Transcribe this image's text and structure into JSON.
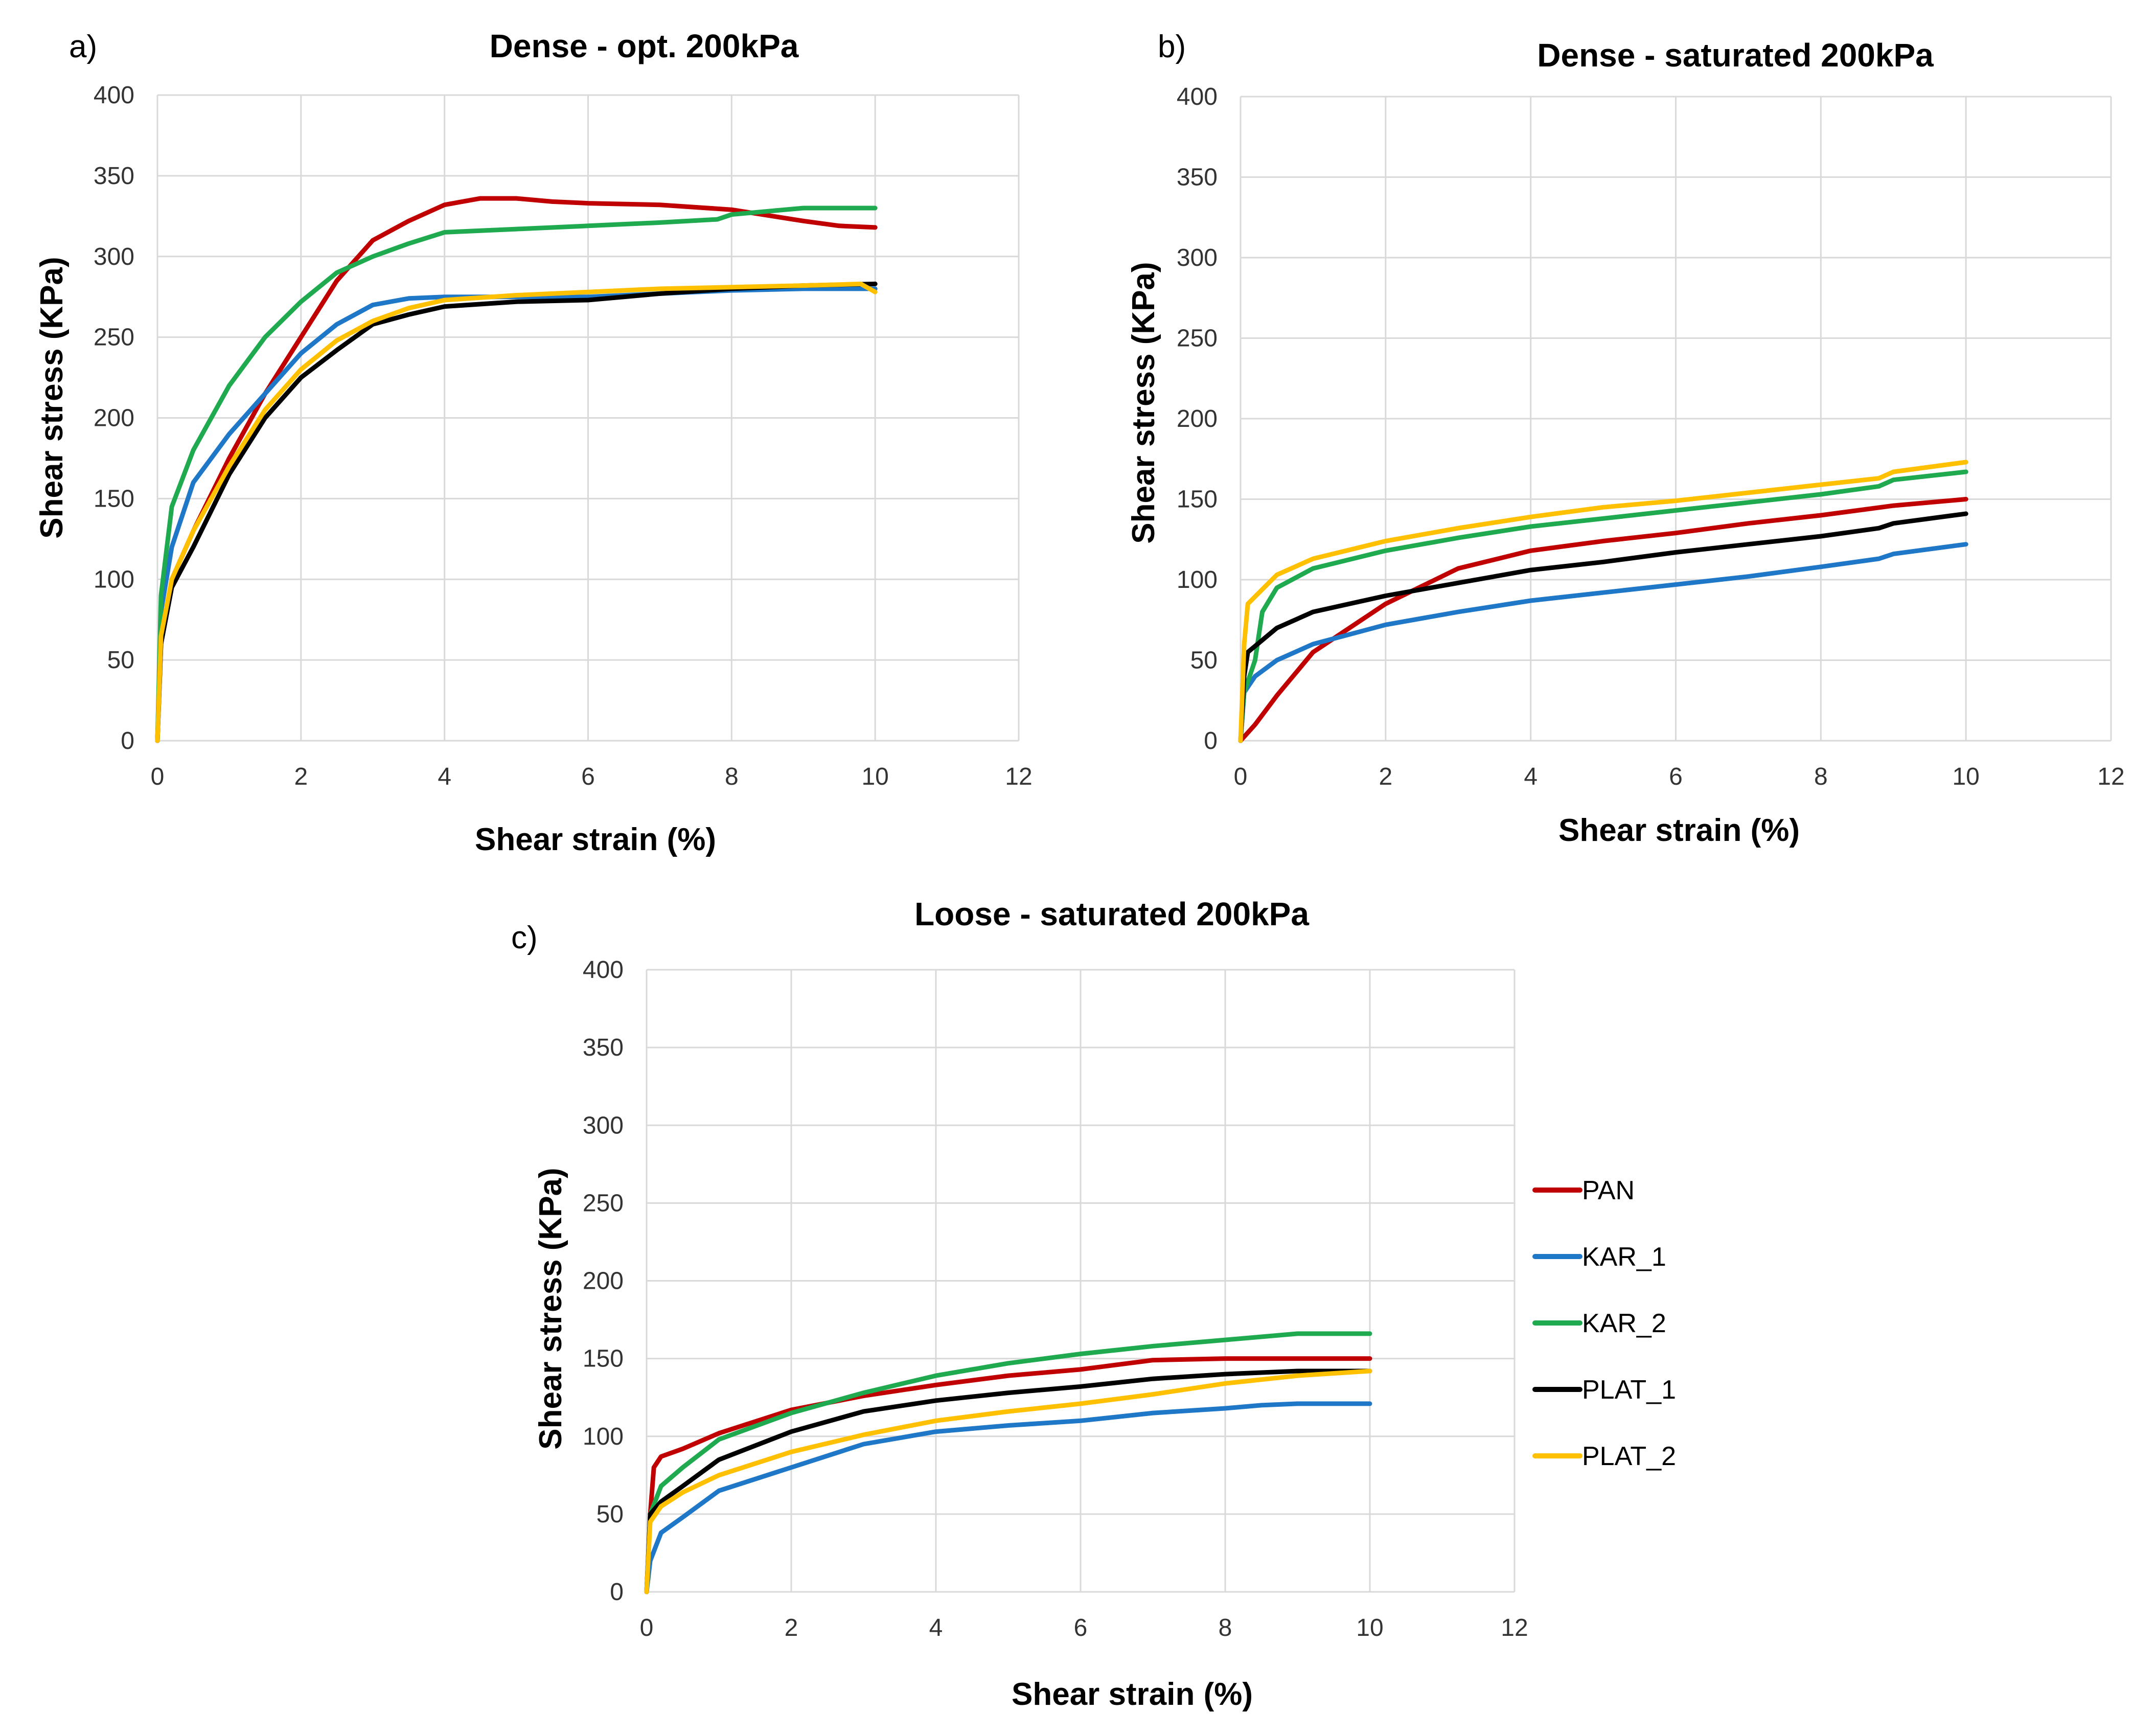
{
  "chart_data": [
    {
      "type": "line",
      "panel": "a)",
      "title": "Dense - opt. 200kPa",
      "xlabel": "Shear strain (%)",
      "ylabel": "Shear stress (KPa)",
      "xlim": [
        0,
        12
      ],
      "ylim": [
        0,
        400
      ],
      "xticks": [
        0,
        2,
        4,
        6,
        8,
        10,
        12
      ],
      "yticks": [
        0,
        50,
        100,
        150,
        200,
        250,
        300,
        350,
        400
      ],
      "grid": true,
      "series": [
        {
          "name": "PAN",
          "color": "#c00000",
          "points": [
            [
              0,
              0
            ],
            [
              0.05,
              60
            ],
            [
              0.2,
              100
            ],
            [
              0.5,
              130
            ],
            [
              1,
              175
            ],
            [
              1.5,
              215
            ],
            [
              2,
              250
            ],
            [
              2.5,
              285
            ],
            [
              3,
              310
            ],
            [
              3.5,
              322
            ],
            [
              4,
              332
            ],
            [
              4.5,
              336
            ],
            [
              5,
              336
            ],
            [
              5.5,
              334
            ],
            [
              6,
              333
            ],
            [
              7,
              332
            ],
            [
              8,
              329
            ],
            [
              9,
              322
            ],
            [
              9.5,
              319
            ],
            [
              10,
              318
            ]
          ]
        },
        {
          "name": "KAR_1",
          "color": "#1f77c8",
          "points": [
            [
              0,
              0
            ],
            [
              0.05,
              80
            ],
            [
              0.2,
              120
            ],
            [
              0.5,
              160
            ],
            [
              1,
              190
            ],
            [
              1.5,
              215
            ],
            [
              2,
              240
            ],
            [
              2.5,
              258
            ],
            [
              3,
              270
            ],
            [
              3.5,
              274
            ],
            [
              4,
              275
            ],
            [
              5,
              275
            ],
            [
              6,
              275
            ],
            [
              7,
              277
            ],
            [
              8,
              279
            ],
            [
              9,
              280
            ],
            [
              10,
              280
            ]
          ]
        },
        {
          "name": "KAR_2",
          "color": "#1faa50",
          "points": [
            [
              0,
              0
            ],
            [
              0.05,
              90
            ],
            [
              0.2,
              145
            ],
            [
              0.5,
              180
            ],
            [
              1,
              220
            ],
            [
              1.5,
              250
            ],
            [
              2,
              272
            ],
            [
              2.5,
              290
            ],
            [
              3,
              300
            ],
            [
              3.5,
              308
            ],
            [
              4,
              315
            ],
            [
              5,
              317
            ],
            [
              6,
              319
            ],
            [
              7,
              321
            ],
            [
              7.8,
              323
            ],
            [
              8,
              326
            ],
            [
              8.5,
              328
            ],
            [
              9,
              330
            ],
            [
              10,
              330
            ]
          ]
        },
        {
          "name": "PLAT_1",
          "color": "#000000",
          "points": [
            [
              0,
              0
            ],
            [
              0.05,
              60
            ],
            [
              0.2,
              95
            ],
            [
              0.5,
              120
            ],
            [
              1,
              165
            ],
            [
              1.5,
              200
            ],
            [
              2,
              225
            ],
            [
              2.5,
              242
            ],
            [
              3,
              258
            ],
            [
              3.5,
              264
            ],
            [
              4,
              269
            ],
            [
              5,
              272
            ],
            [
              6,
              273
            ],
            [
              7,
              277
            ],
            [
              8,
              280
            ],
            [
              9,
              282
            ],
            [
              10,
              283
            ]
          ]
        },
        {
          "name": "PLAT_2",
          "color": "#ffc000",
          "points": [
            [
              0,
              0
            ],
            [
              0.05,
              65
            ],
            [
              0.2,
              100
            ],
            [
              0.5,
              130
            ],
            [
              1,
              170
            ],
            [
              1.5,
              205
            ],
            [
              2,
              230
            ],
            [
              2.5,
              248
            ],
            [
              3,
              260
            ],
            [
              3.5,
              268
            ],
            [
              4,
              273
            ],
            [
              5,
              276
            ],
            [
              6,
              278
            ],
            [
              7,
              280
            ],
            [
              8,
              281
            ],
            [
              9,
              282
            ],
            [
              9.8,
              283
            ],
            [
              10,
              278
            ]
          ]
        }
      ]
    },
    {
      "type": "line",
      "panel": "b)",
      "title": "Dense - saturated 200kPa",
      "xlabel": "Shear strain (%)",
      "ylabel": "Shear stress (KPa)",
      "xlim": [
        0,
        12
      ],
      "ylim": [
        0,
        400
      ],
      "xticks": [
        0,
        2,
        4,
        6,
        8,
        10,
        12
      ],
      "yticks": [
        0,
        50,
        100,
        150,
        200,
        250,
        300,
        350,
        400
      ],
      "grid": true,
      "series": [
        {
          "name": "PAN",
          "color": "#c00000",
          "points": [
            [
              0,
              0
            ],
            [
              0.2,
              10
            ],
            [
              0.5,
              28
            ],
            [
              1,
              55
            ],
            [
              2,
              85
            ],
            [
              3,
              107
            ],
            [
              4,
              118
            ],
            [
              5,
              124
            ],
            [
              6,
              129
            ],
            [
              7,
              135
            ],
            [
              8,
              140
            ],
            [
              9,
              146
            ],
            [
              10,
              150
            ]
          ]
        },
        {
          "name": "KAR_1",
          "color": "#1f77c8",
          "points": [
            [
              0,
              0
            ],
            [
              0.05,
              30
            ],
            [
              0.2,
              40
            ],
            [
              0.5,
              50
            ],
            [
              1,
              60
            ],
            [
              2,
              72
            ],
            [
              3,
              80
            ],
            [
              4,
              87
            ],
            [
              5,
              92
            ],
            [
              6,
              97
            ],
            [
              7,
              102
            ],
            [
              8,
              108
            ],
            [
              8.8,
              113
            ],
            [
              9,
              116
            ],
            [
              10,
              122
            ]
          ]
        },
        {
          "name": "KAR_2",
          "color": "#1faa50",
          "points": [
            [
              0,
              0
            ],
            [
              0.05,
              30
            ],
            [
              0.2,
              50
            ],
            [
              0.3,
              80
            ],
            [
              0.5,
              95
            ],
            [
              1,
              107
            ],
            [
              2,
              118
            ],
            [
              3,
              126
            ],
            [
              4,
              133
            ],
            [
              5,
              138
            ],
            [
              6,
              143
            ],
            [
              7,
              148
            ],
            [
              8,
              153
            ],
            [
              8.8,
              158
            ],
            [
              9,
              162
            ],
            [
              10,
              167
            ]
          ]
        },
        {
          "name": "PLAT_1",
          "color": "#000000",
          "points": [
            [
              0,
              0
            ],
            [
              0.05,
              40
            ],
            [
              0.1,
              55
            ],
            [
              0.5,
              70
            ],
            [
              1,
              80
            ],
            [
              2,
              90
            ],
            [
              3,
              98
            ],
            [
              4,
              106
            ],
            [
              5,
              111
            ],
            [
              6,
              117
            ],
            [
              7,
              122
            ],
            [
              8,
              127
            ],
            [
              8.8,
              132
            ],
            [
              9,
              135
            ],
            [
              10,
              141
            ]
          ]
        },
        {
          "name": "PLAT_2",
          "color": "#ffc000",
          "points": [
            [
              0,
              0
            ],
            [
              0.05,
              60
            ],
            [
              0.1,
              85
            ],
            [
              0.5,
              103
            ],
            [
              1,
              113
            ],
            [
              2,
              124
            ],
            [
              3,
              132
            ],
            [
              4,
              139
            ],
            [
              5,
              145
            ],
            [
              6,
              149
            ],
            [
              7,
              154
            ],
            [
              8,
              159
            ],
            [
              8.8,
              163
            ],
            [
              9,
              167
            ],
            [
              10,
              173
            ]
          ]
        }
      ]
    },
    {
      "type": "line",
      "panel": "c)",
      "title": "Loose - saturated 200kPa",
      "xlabel": "Shear strain (%)",
      "ylabel": "Shear stress (KPa)",
      "xlim": [
        0,
        12
      ],
      "ylim": [
        0,
        400
      ],
      "xticks": [
        0,
        2,
        4,
        6,
        8,
        10,
        12
      ],
      "yticks": [
        0,
        50,
        100,
        150,
        200,
        250,
        300,
        350,
        400
      ],
      "grid": true,
      "legend": "right",
      "series": [
        {
          "name": "PAN",
          "color": "#c00000",
          "points": [
            [
              0,
              0
            ],
            [
              0.05,
              50
            ],
            [
              0.1,
              80
            ],
            [
              0.2,
              87
            ],
            [
              0.5,
              92
            ],
            [
              1,
              102
            ],
            [
              2,
              117
            ],
            [
              3,
              126
            ],
            [
              4,
              133
            ],
            [
              5,
              139
            ],
            [
              6,
              143
            ],
            [
              7,
              149
            ],
            [
              8,
              150
            ],
            [
              9,
              150
            ],
            [
              10,
              150
            ]
          ]
        },
        {
          "name": "KAR_1",
          "color": "#1f77c8",
          "points": [
            [
              0,
              0
            ],
            [
              0.05,
              20
            ],
            [
              0.2,
              38
            ],
            [
              0.5,
              48
            ],
            [
              1,
              65
            ],
            [
              2,
              80
            ],
            [
              3,
              95
            ],
            [
              4,
              103
            ],
            [
              5,
              107
            ],
            [
              6,
              110
            ],
            [
              7,
              115
            ],
            [
              8,
              118
            ],
            [
              8.5,
              120
            ],
            [
              9,
              121
            ],
            [
              10,
              121
            ]
          ]
        },
        {
          "name": "KAR_2",
          "color": "#1faa50",
          "points": [
            [
              0,
              0
            ],
            [
              0.05,
              50
            ],
            [
              0.2,
              68
            ],
            [
              0.5,
              80
            ],
            [
              1,
              98
            ],
            [
              2,
              115
            ],
            [
              3,
              128
            ],
            [
              4,
              139
            ],
            [
              5,
              147
            ],
            [
              6,
              153
            ],
            [
              7,
              158
            ],
            [
              8,
              162
            ],
            [
              9,
              166
            ],
            [
              10,
              166
            ]
          ]
        },
        {
          "name": "PLAT_1",
          "color": "#000000",
          "points": [
            [
              0,
              0
            ],
            [
              0.05,
              50
            ],
            [
              0.2,
              58
            ],
            [
              0.5,
              68
            ],
            [
              1,
              85
            ],
            [
              2,
              103
            ],
            [
              3,
              116
            ],
            [
              4,
              123
            ],
            [
              5,
              128
            ],
            [
              6,
              132
            ],
            [
              7,
              137
            ],
            [
              8,
              140
            ],
            [
              9,
              142
            ],
            [
              10,
              142
            ]
          ]
        },
        {
          "name": "PLAT_2",
          "color": "#ffc000",
          "points": [
            [
              0,
              0
            ],
            [
              0.05,
              45
            ],
            [
              0.2,
              55
            ],
            [
              0.5,
              64
            ],
            [
              1,
              75
            ],
            [
              2,
              90
            ],
            [
              3,
              101
            ],
            [
              4,
              110
            ],
            [
              5,
              116
            ],
            [
              6,
              121
            ],
            [
              7,
              127
            ],
            [
              8,
              134
            ],
            [
              9,
              139
            ],
            [
              10,
              142
            ]
          ]
        }
      ]
    }
  ]
}
